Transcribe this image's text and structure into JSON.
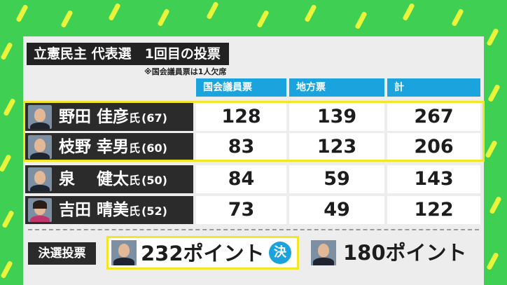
{
  "title": "立憲民主 代表選　1回目の投票",
  "note": "※国会議員票は1人欠席",
  "headers": [
    "国会議員票",
    "地方票",
    "計"
  ],
  "candidates": [
    {
      "name": "野田 佳彦",
      "suffix": "氏",
      "age": "(67)",
      "values": [
        "128",
        "139",
        "267"
      ]
    },
    {
      "name": "枝野 幸男",
      "suffix": "氏",
      "age": "(60)",
      "values": [
        "83",
        "123",
        "206"
      ]
    },
    {
      "name": "泉　 健太",
      "suffix": "氏",
      "age": "(50)",
      "values": [
        "84",
        "59",
        "143"
      ]
    },
    {
      "name": "吉田 晴美",
      "suffix": "氏",
      "age": "(52)",
      "values": [
        "73",
        "49",
        "122"
      ]
    }
  ],
  "runoff": {
    "label": "決選投票",
    "winner_points": "232ポイント",
    "winner_badge": "決",
    "runner_points": "180ポイント"
  },
  "colors": {
    "background": "#3fcf52",
    "accent": "#1aa3dc",
    "highlight": "#f3e629"
  }
}
